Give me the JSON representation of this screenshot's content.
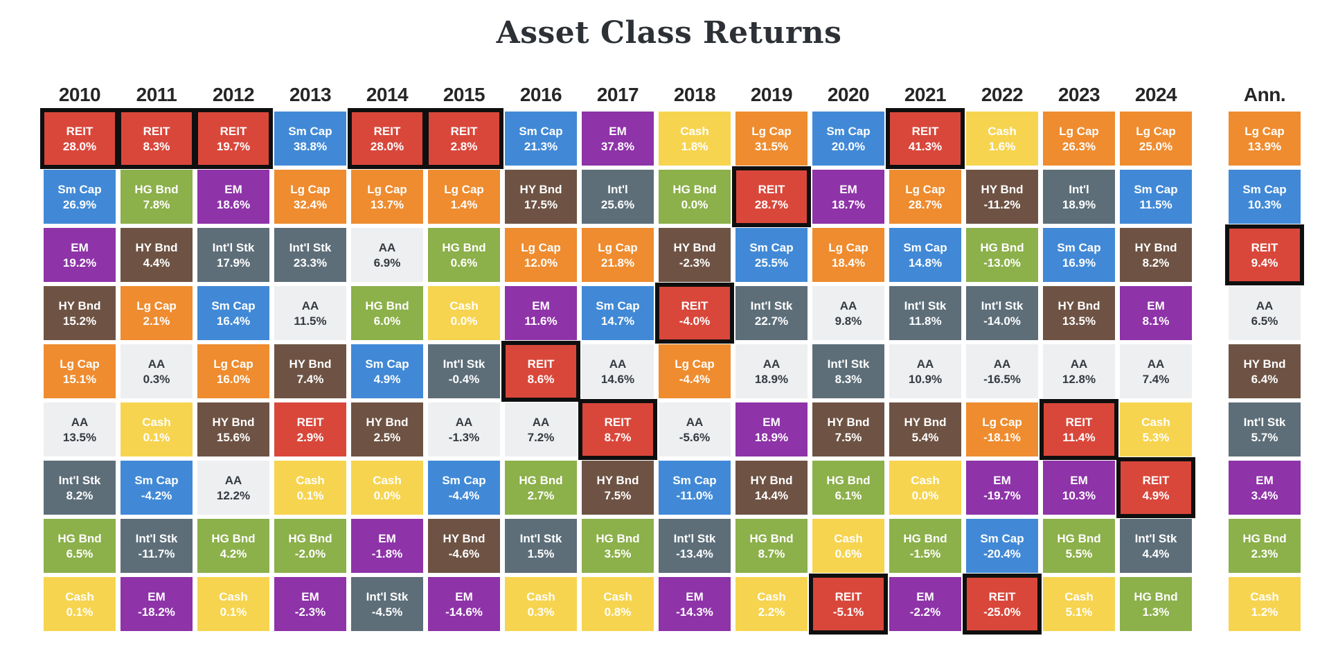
{
  "title": "Asset Class Returns",
  "highlight_border": "#0f0f0f",
  "asset_classes": {
    "REIT": {
      "bg": "#d9473b",
      "text": "#ffffff"
    },
    "Sm Cap": {
      "bg": "#4189d6",
      "text": "#ffffff"
    },
    "Lg Cap": {
      "bg": "#ee8c2f",
      "text": "#ffffff"
    },
    "EM": {
      "bg": "#8e33a8",
      "text": "#ffffff"
    },
    "HG Bnd": {
      "bg": "#8cb04a",
      "text": "#ffffff"
    },
    "HY Bnd": {
      "bg": "#6e5344",
      "text": "#ffffff"
    },
    "Int'l Stk": {
      "bg": "#5d6e79",
      "text": "#ffffff"
    },
    "Int'l": {
      "bg": "#5d6e79",
      "text": "#ffffff"
    },
    "AA": {
      "bg": "#edeff1",
      "text": "#343a40"
    },
    "Cash": {
      "bg": "#f6d44f",
      "text": "#ffffff"
    }
  },
  "chart_data": {
    "type": "table",
    "title": "Asset Class Returns",
    "legend_position": "none",
    "grid": false,
    "columns": [
      {
        "header": "2010",
        "cells": [
          {
            "label": "REIT",
            "value": "28.0%",
            "highlight": true
          },
          {
            "label": "Sm Cap",
            "value": "26.9%"
          },
          {
            "label": "EM",
            "value": "19.2%"
          },
          {
            "label": "HY Bnd",
            "value": "15.2%"
          },
          {
            "label": "Lg Cap",
            "value": "15.1%"
          },
          {
            "label": "AA",
            "value": "13.5%"
          },
          {
            "label": "Int'l Stk",
            "value": "8.2%"
          },
          {
            "label": "HG Bnd",
            "value": "6.5%"
          },
          {
            "label": "Cash",
            "value": "0.1%"
          }
        ]
      },
      {
        "header": "2011",
        "cells": [
          {
            "label": "REIT",
            "value": "8.3%",
            "highlight": true
          },
          {
            "label": "HG Bnd",
            "value": "7.8%"
          },
          {
            "label": "HY Bnd",
            "value": "4.4%"
          },
          {
            "label": "Lg Cap",
            "value": "2.1%"
          },
          {
            "label": "AA",
            "value": "0.3%"
          },
          {
            "label": "Cash",
            "value": "0.1%"
          },
          {
            "label": "Sm Cap",
            "value": "-4.2%"
          },
          {
            "label": "Int'l Stk",
            "value": "-11.7%"
          },
          {
            "label": "EM",
            "value": "-18.2%"
          }
        ]
      },
      {
        "header": "2012",
        "cells": [
          {
            "label": "REIT",
            "value": "19.7%",
            "highlight": true
          },
          {
            "label": "EM",
            "value": "18.6%"
          },
          {
            "label": "Int'l Stk",
            "value": "17.9%"
          },
          {
            "label": "Sm Cap",
            "value": "16.4%"
          },
          {
            "label": "Lg Cap",
            "value": "16.0%"
          },
          {
            "label": "HY Bnd",
            "value": "15.6%"
          },
          {
            "label": "AA",
            "value": "12.2%"
          },
          {
            "label": "HG Bnd",
            "value": "4.2%"
          },
          {
            "label": "Cash",
            "value": "0.1%"
          }
        ]
      },
      {
        "header": "2013",
        "cells": [
          {
            "label": "Sm Cap",
            "value": "38.8%"
          },
          {
            "label": "Lg Cap",
            "value": "32.4%"
          },
          {
            "label": "Int'l Stk",
            "value": "23.3%"
          },
          {
            "label": "AA",
            "value": "11.5%"
          },
          {
            "label": "HY Bnd",
            "value": "7.4%"
          },
          {
            "label": "REIT",
            "value": "2.9%"
          },
          {
            "label": "Cash",
            "value": "0.1%"
          },
          {
            "label": "HG Bnd",
            "value": "-2.0%"
          },
          {
            "label": "EM",
            "value": "-2.3%"
          }
        ]
      },
      {
        "header": "2014",
        "cells": [
          {
            "label": "REIT",
            "value": "28.0%",
            "highlight": true
          },
          {
            "label": "Lg Cap",
            "value": "13.7%"
          },
          {
            "label": "AA",
            "value": "6.9%"
          },
          {
            "label": "HG Bnd",
            "value": "6.0%"
          },
          {
            "label": "Sm Cap",
            "value": "4.9%"
          },
          {
            "label": "HY Bnd",
            "value": "2.5%"
          },
          {
            "label": "Cash",
            "value": "0.0%"
          },
          {
            "label": "EM",
            "value": "-1.8%"
          },
          {
            "label": "Int'l Stk",
            "value": "-4.5%"
          }
        ]
      },
      {
        "header": "2015",
        "cells": [
          {
            "label": "REIT",
            "value": "2.8%",
            "highlight": true
          },
          {
            "label": "Lg Cap",
            "value": "1.4%"
          },
          {
            "label": "HG Bnd",
            "value": "0.6%"
          },
          {
            "label": "Cash",
            "value": "0.0%"
          },
          {
            "label": "Int'l Stk",
            "value": "-0.4%"
          },
          {
            "label": "AA",
            "value": "-1.3%"
          },
          {
            "label": "Sm Cap",
            "value": "-4.4%"
          },
          {
            "label": "HY Bnd",
            "value": "-4.6%"
          },
          {
            "label": "EM",
            "value": "-14.6%"
          }
        ]
      },
      {
        "header": "2016",
        "cells": [
          {
            "label": "Sm Cap",
            "value": "21.3%"
          },
          {
            "label": "HY Bnd",
            "value": "17.5%"
          },
          {
            "label": "Lg Cap",
            "value": "12.0%"
          },
          {
            "label": "EM",
            "value": "11.6%"
          },
          {
            "label": "REIT",
            "value": "8.6%",
            "highlight": true
          },
          {
            "label": "AA",
            "value": "7.2%"
          },
          {
            "label": "HG Bnd",
            "value": "2.7%"
          },
          {
            "label": "Int'l Stk",
            "value": "1.5%"
          },
          {
            "label": "Cash",
            "value": "0.3%"
          }
        ]
      },
      {
        "header": "2017",
        "cells": [
          {
            "label": "EM",
            "value": "37.8%"
          },
          {
            "label": "Int'l",
            "value": "25.6%"
          },
          {
            "label": "Lg Cap",
            "value": "21.8%"
          },
          {
            "label": "Sm Cap",
            "value": "14.7%"
          },
          {
            "label": "AA",
            "value": "14.6%"
          },
          {
            "label": "REIT",
            "value": "8.7%",
            "highlight": true
          },
          {
            "label": "HY Bnd",
            "value": "7.5%"
          },
          {
            "label": "HG Bnd",
            "value": "3.5%"
          },
          {
            "label": "Cash",
            "value": "0.8%"
          }
        ]
      },
      {
        "header": "2018",
        "cells": [
          {
            "label": "Cash",
            "value": "1.8%"
          },
          {
            "label": "HG Bnd",
            "value": "0.0%"
          },
          {
            "label": "HY Bnd",
            "value": "-2.3%"
          },
          {
            "label": "REIT",
            "value": "-4.0%",
            "highlight": true
          },
          {
            "label": "Lg Cap",
            "value": "-4.4%"
          },
          {
            "label": "AA",
            "value": "-5.6%"
          },
          {
            "label": "Sm Cap",
            "value": "-11.0%"
          },
          {
            "label": "Int'l Stk",
            "value": "-13.4%"
          },
          {
            "label": "EM",
            "value": "-14.3%"
          }
        ]
      },
      {
        "header": "2019",
        "cells": [
          {
            "label": "Lg Cap",
            "value": "31.5%"
          },
          {
            "label": "REIT",
            "value": "28.7%",
            "highlight": true
          },
          {
            "label": "Sm Cap",
            "value": "25.5%"
          },
          {
            "label": "Int'l Stk",
            "value": "22.7%"
          },
          {
            "label": "AA",
            "value": "18.9%"
          },
          {
            "label": "EM",
            "value": "18.9%"
          },
          {
            "label": "HY Bnd",
            "value": "14.4%"
          },
          {
            "label": "HG Bnd",
            "value": "8.7%"
          },
          {
            "label": "Cash",
            "value": "2.2%"
          }
        ]
      },
      {
        "header": "2020",
        "cells": [
          {
            "label": "Sm Cap",
            "value": "20.0%"
          },
          {
            "label": "EM",
            "value": "18.7%"
          },
          {
            "label": "Lg Cap",
            "value": "18.4%"
          },
          {
            "label": "AA",
            "value": "9.8%"
          },
          {
            "label": "Int'l Stk",
            "value": "8.3%"
          },
          {
            "label": "HY Bnd",
            "value": "7.5%"
          },
          {
            "label": "HG Bnd",
            "value": "6.1%"
          },
          {
            "label": "Cash",
            "value": "0.6%"
          },
          {
            "label": "REIT",
            "value": "-5.1%",
            "highlight": true
          }
        ]
      },
      {
        "header": "2021",
        "cells": [
          {
            "label": "REIT",
            "value": "41.3%",
            "highlight": true
          },
          {
            "label": "Lg Cap",
            "value": "28.7%"
          },
          {
            "label": "Sm Cap",
            "value": "14.8%"
          },
          {
            "label": "Int'l Stk",
            "value": "11.8%"
          },
          {
            "label": "AA",
            "value": "10.9%"
          },
          {
            "label": "HY Bnd",
            "value": "5.4%"
          },
          {
            "label": "Cash",
            "value": "0.0%"
          },
          {
            "label": "HG Bnd",
            "value": "-1.5%"
          },
          {
            "label": "EM",
            "value": "-2.2%"
          }
        ]
      },
      {
        "header": "2022",
        "cells": [
          {
            "label": "Cash",
            "value": "1.6%"
          },
          {
            "label": "HY Bnd",
            "value": "-11.2%"
          },
          {
            "label": "HG Bnd",
            "value": "-13.0%"
          },
          {
            "label": "Int'l Stk",
            "value": "-14.0%"
          },
          {
            "label": "AA",
            "value": "-16.5%"
          },
          {
            "label": "Lg Cap",
            "value": "-18.1%"
          },
          {
            "label": "EM",
            "value": "-19.7%"
          },
          {
            "label": "Sm Cap",
            "value": "-20.4%"
          },
          {
            "label": "REIT",
            "value": "-25.0%",
            "highlight": true
          }
        ]
      },
      {
        "header": "2023",
        "cells": [
          {
            "label": "Lg Cap",
            "value": "26.3%"
          },
          {
            "label": "Int'l",
            "value": "18.9%"
          },
          {
            "label": "Sm Cap",
            "value": "16.9%"
          },
          {
            "label": "HY Bnd",
            "value": "13.5%"
          },
          {
            "label": "AA",
            "value": "12.8%"
          },
          {
            "label": "REIT",
            "value": "11.4%",
            "highlight": true
          },
          {
            "label": "EM",
            "value": "10.3%"
          },
          {
            "label": "HG Bnd",
            "value": "5.5%"
          },
          {
            "label": "Cash",
            "value": "5.1%"
          }
        ]
      },
      {
        "header": "2024",
        "cells": [
          {
            "label": "Lg Cap",
            "value": "25.0%"
          },
          {
            "label": "Sm Cap",
            "value": "11.5%"
          },
          {
            "label": "HY Bnd",
            "value": "8.2%"
          },
          {
            "label": "EM",
            "value": "8.1%"
          },
          {
            "label": "AA",
            "value": "7.4%"
          },
          {
            "label": "Cash",
            "value": "5.3%"
          },
          {
            "label": "REIT",
            "value": "4.9%",
            "highlight": true
          },
          {
            "label": "Int'l Stk",
            "value": "4.4%"
          },
          {
            "label": "HG Bnd",
            "value": "1.3%"
          }
        ]
      },
      {
        "header": "Ann.",
        "cells": [
          {
            "label": "Lg Cap",
            "value": "13.9%"
          },
          {
            "label": "Sm Cap",
            "value": "10.3%"
          },
          {
            "label": "REIT",
            "value": "9.4%",
            "highlight": true
          },
          {
            "label": "AA",
            "value": "6.5%"
          },
          {
            "label": "HY Bnd",
            "value": "6.4%"
          },
          {
            "label": "Int'l Stk",
            "value": "5.7%"
          },
          {
            "label": "EM",
            "value": "3.4%"
          },
          {
            "label": "HG Bnd",
            "value": "2.3%"
          },
          {
            "label": "Cash",
            "value": "1.2%"
          }
        ]
      }
    ]
  }
}
